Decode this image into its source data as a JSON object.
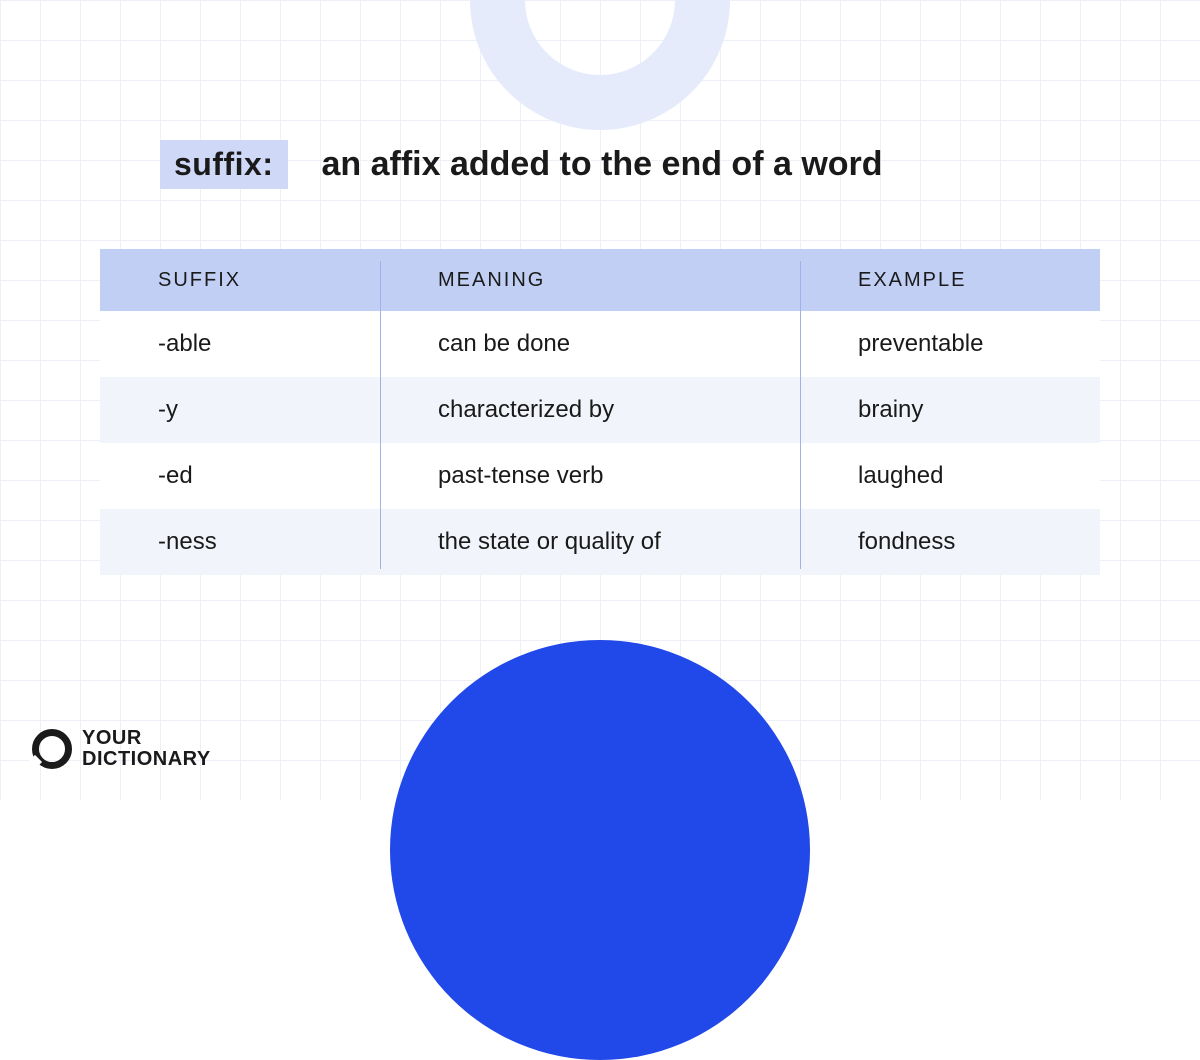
{
  "definition": {
    "term": "suffix:",
    "text": "an affix added to the end of a word"
  },
  "table": {
    "columns": [
      "SUFFIX",
      "MEANING",
      "EXAMPLE"
    ],
    "rows": [
      {
        "suffix": "-able",
        "meaning": "can be done",
        "example": "preventable"
      },
      {
        "suffix": "-y",
        "meaning": "characterized by",
        "example": "brainy"
      },
      {
        "suffix": "-ed",
        "meaning": "past-tense verb",
        "example": "laughed"
      },
      {
        "suffix": "-ness",
        "meaning": "the state or quality of",
        "example": "fondness"
      }
    ],
    "header_bg": "#c2cff4",
    "row_tint_bg": "#f2f4fc",
    "row_white_bg": "#ffffff",
    "divider_color": "#9fb2e9"
  },
  "logo": {
    "line1": "YOUR",
    "line2": "DICTIONARY"
  },
  "decor": {
    "top_ring_color": "#e6ebfb",
    "bottom_circle_color": "#2148e8",
    "grid_color": "#edf1f7"
  }
}
